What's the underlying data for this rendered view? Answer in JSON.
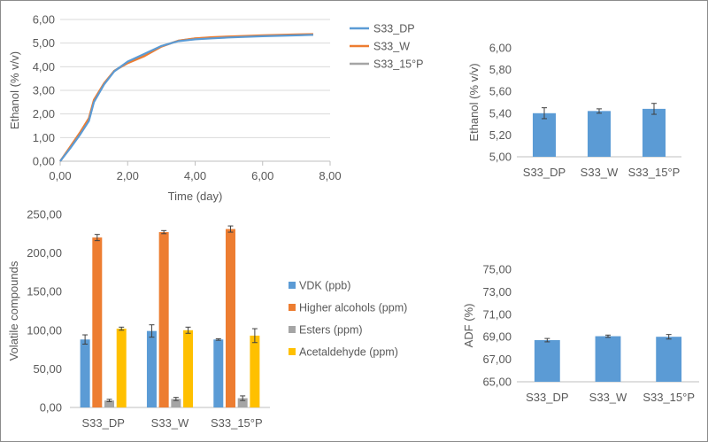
{
  "chart_data": [
    {
      "type": "line",
      "title": "",
      "xlabel": "Time (day)",
      "ylabel": "Ethanol (% v/v)",
      "xlim": [
        0,
        8
      ],
      "ylim": [
        0,
        6
      ],
      "x_ticks": [
        "0,00",
        "2,00",
        "4,00",
        "6,00",
        "8,00"
      ],
      "y_ticks": [
        "0,00",
        "1,00",
        "2,00",
        "3,00",
        "4,00",
        "5,00",
        "6,00"
      ],
      "grid": "horizontal",
      "legend": "right",
      "series": [
        {
          "name": "S33_DP",
          "color": "#5b9bd5",
          "x": [
            0,
            0.3,
            0.6,
            0.85,
            1.0,
            1.3,
            1.6,
            2.0,
            2.5,
            3.0,
            3.5,
            4.0,
            4.5,
            5.0,
            6.0,
            7.0,
            7.5
          ],
          "y": [
            0,
            0.55,
            1.15,
            1.7,
            2.5,
            3.25,
            3.8,
            4.22,
            4.55,
            4.88,
            5.08,
            5.16,
            5.2,
            5.24,
            5.29,
            5.33,
            5.35
          ]
        },
        {
          "name": "S33_W",
          "color": "#ed7d31",
          "x": [
            0,
            0.3,
            0.6,
            0.85,
            1.0,
            1.3,
            1.6,
            2.0,
            2.5,
            3.0,
            3.5,
            4.0,
            4.5,
            5.0,
            6.0,
            7.0,
            7.5
          ],
          "y": [
            0,
            0.62,
            1.25,
            1.82,
            2.6,
            3.3,
            3.82,
            4.15,
            4.45,
            4.85,
            5.1,
            5.2,
            5.25,
            5.28,
            5.33,
            5.37,
            5.38
          ]
        },
        {
          "name": "S33_15°P",
          "color": "#a5a5a5",
          "x": [
            0,
            0.3,
            0.6,
            0.85,
            1.0,
            1.3,
            1.6,
            2.0,
            2.5,
            3.0,
            3.5,
            4.0,
            4.5,
            5.0,
            6.0,
            7.0,
            7.5
          ],
          "y": [
            0,
            0.58,
            1.2,
            1.76,
            2.55,
            3.28,
            3.82,
            4.2,
            4.5,
            4.87,
            5.1,
            5.2,
            5.24,
            5.27,
            5.31,
            5.34,
            5.36
          ]
        }
      ]
    },
    {
      "type": "bar",
      "title": "",
      "xlabel": "",
      "ylabel": "Ethanol (% v/v)",
      "ylim": [
        5.0,
        6.0
      ],
      "y_ticks": [
        "5,00",
        "5,20",
        "5,40",
        "5,60",
        "5,80",
        "6,00"
      ],
      "grid": "none",
      "categories": [
        "S33_DP",
        "S33_W",
        "S33_15°P"
      ],
      "values": [
        5.4,
        5.42,
        5.44
      ],
      "errors": [
        0.05,
        0.02,
        0.05
      ],
      "color": "#5b9bd5"
    },
    {
      "type": "bar",
      "title": "",
      "xlabel": "",
      "ylabel": "Volatile compounds",
      "ylim": [
        0,
        250
      ],
      "y_ticks": [
        "0,00",
        "50,00",
        "100,00",
        "150,00",
        "200,00",
        "250,00"
      ],
      "grid": "none",
      "legend": "right",
      "categories": [
        "S33_DP",
        "S33_W",
        "S33_15°P"
      ],
      "series": [
        {
          "name": "VDK (ppb)",
          "color": "#5b9bd5",
          "values": [
            88,
            99,
            88
          ],
          "errors": [
            6,
            8,
            1
          ]
        },
        {
          "name": "Higher alcohols (ppm)",
          "color": "#ed7d31",
          "values": [
            220,
            227,
            231
          ],
          "errors": [
            4,
            2,
            4
          ]
        },
        {
          "name": "Esters (ppm)",
          "color": "#a5a5a5",
          "values": [
            9,
            11,
            12
          ],
          "errors": [
            1.5,
            2,
            3
          ]
        },
        {
          "name": "Acetaldehyde (ppm)",
          "color": "#ffc000",
          "values": [
            102,
            100,
            93
          ],
          "errors": [
            2,
            4,
            9
          ]
        }
      ]
    },
    {
      "type": "bar",
      "title": "",
      "xlabel": "",
      "ylabel": "ADF (%)",
      "ylim": [
        65,
        75
      ],
      "y_ticks": [
        "65,00",
        "67,00",
        "69,00",
        "71,00",
        "73,00",
        "75,00"
      ],
      "grid": "none",
      "categories": [
        "S33_DP",
        "S33_W",
        "S33_15°P"
      ],
      "values": [
        68.7,
        69.05,
        69.0
      ],
      "errors": [
        0.15,
        0.1,
        0.2
      ],
      "color": "#5b9bd5"
    }
  ]
}
